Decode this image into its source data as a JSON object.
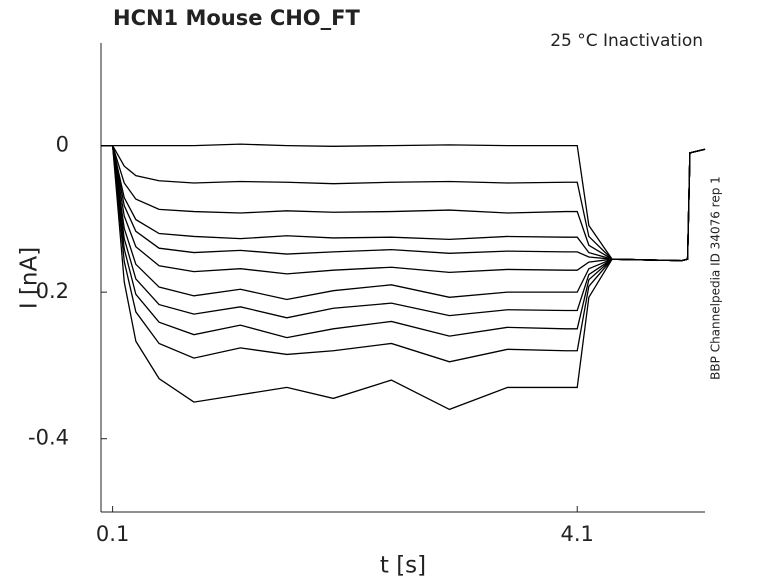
{
  "chart_data": {
    "type": "line",
    "title": "HCN1  Mouse  CHO_FT",
    "annotation": "25 °C  Inactivation",
    "side_label": "BBP Channelpedia ID 34076 rep 1",
    "xlabel": "t [s]",
    "ylabel": "I [nA]",
    "x": [
      0,
      0.1,
      0.2,
      0.3,
      0.5,
      0.8,
      1.2,
      1.6,
      2.0,
      2.5,
      3.0,
      3.5,
      4.0,
      4.1,
      4.2,
      4.4,
      5.0,
      5.05,
      5.07,
      5.2
    ],
    "series": [
      {
        "color": "#000000",
        "values": [
          0,
          0,
          0,
          0,
          0,
          0,
          0.002,
          0,
          -0.001,
          0,
          0.001,
          0,
          0,
          0,
          -0.109,
          -0.155,
          -0.157,
          -0.155,
          -0.01,
          -0.005
        ]
      },
      {
        "color": "#000000",
        "values": [
          0,
          0,
          -0.028,
          -0.041,
          -0.048,
          -0.051,
          -0.049,
          -0.05,
          -0.052,
          -0.05,
          -0.049,
          -0.051,
          -0.05,
          -0.05,
          -0.124,
          -0.155,
          -0.157,
          -0.155,
          -0.01,
          -0.005
        ]
      },
      {
        "color": "#000000",
        "values": [
          0,
          0,
          -0.051,
          -0.073,
          -0.087,
          -0.09,
          -0.092,
          -0.089,
          -0.091,
          -0.09,
          -0.088,
          -0.092,
          -0.09,
          -0.09,
          -0.136,
          -0.155,
          -0.157,
          -0.155,
          -0.01,
          -0.005
        ]
      },
      {
        "color": "#000000",
        "values": [
          0,
          0,
          -0.071,
          -0.101,
          -0.12,
          -0.124,
          -0.127,
          -0.123,
          -0.126,
          -0.125,
          -0.128,
          -0.124,
          -0.125,
          -0.125,
          -0.146,
          -0.155,
          -0.157,
          -0.155,
          -0.01,
          -0.005
        ]
      },
      {
        "color": "#000000",
        "values": [
          0,
          0,
          -0.082,
          -0.117,
          -0.14,
          -0.146,
          -0.143,
          -0.148,
          -0.145,
          -0.142,
          -0.147,
          -0.144,
          -0.145,
          -0.145,
          -0.152,
          -0.155,
          -0.157,
          -0.155,
          -0.01,
          -0.005
        ]
      },
      {
        "color": "#000000",
        "values": [
          0,
          0,
          -0.096,
          -0.138,
          -0.164,
          -0.172,
          -0.168,
          -0.175,
          -0.17,
          -0.166,
          -0.173,
          -0.169,
          -0.17,
          -0.17,
          -0.159,
          -0.155,
          -0.157,
          -0.155,
          -0.01,
          -0.005
        ]
      },
      {
        "color": "#000000",
        "values": [
          0,
          0,
          -0.113,
          -0.162,
          -0.193,
          -0.205,
          -0.196,
          -0.21,
          -0.198,
          -0.19,
          -0.207,
          -0.2,
          -0.2,
          -0.2,
          -0.168,
          -0.155,
          -0.157,
          -0.155,
          -0.01,
          -0.005
        ]
      },
      {
        "color": "#000000",
        "values": [
          0,
          0,
          -0.127,
          -0.182,
          -0.217,
          -0.23,
          -0.22,
          -0.235,
          -0.222,
          -0.215,
          -0.232,
          -0.224,
          -0.225,
          -0.225,
          -0.176,
          -0.155,
          -0.157,
          -0.155,
          -0.01,
          -0.005
        ]
      },
      {
        "color": "#000000",
        "values": [
          0,
          0,
          -0.141,
          -0.203,
          -0.241,
          -0.258,
          -0.245,
          -0.262,
          -0.25,
          -0.24,
          -0.26,
          -0.248,
          -0.25,
          -0.25,
          -0.183,
          -0.155,
          -0.157,
          -0.155,
          -0.01,
          -0.005
        ]
      },
      {
        "color": "#000000",
        "values": [
          0,
          0,
          -0.158,
          -0.227,
          -0.27,
          -0.29,
          -0.276,
          -0.285,
          -0.28,
          -0.27,
          -0.295,
          -0.278,
          -0.28,
          -0.28,
          -0.192,
          -0.155,
          -0.157,
          -0.155,
          -0.01,
          -0.005
        ]
      },
      {
        "color": "#000000",
        "values": [
          0,
          0,
          -0.186,
          -0.267,
          -0.318,
          -0.35,
          -0.34,
          -0.33,
          -0.345,
          -0.32,
          -0.36,
          -0.33,
          -0.33,
          -0.33,
          -0.207,
          -0.155,
          -0.157,
          -0.155,
          -0.01,
          -0.005
        ]
      }
    ],
    "xlim": [
      0,
      5.2
    ],
    "xticks": [
      0.1,
      4.1
    ],
    "ylim": [
      -0.5,
      0.14
    ],
    "yticks": [
      0,
      -0.2,
      -0.4
    ]
  }
}
